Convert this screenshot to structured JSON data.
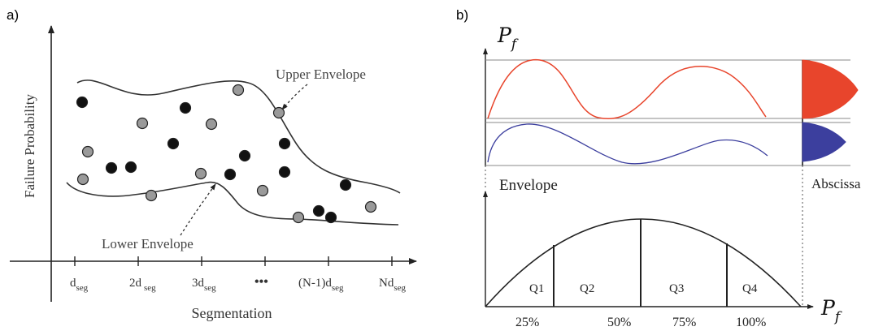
{
  "panel_a": {
    "panel_label": "a)",
    "y_axis_label": "Failure Probability",
    "x_axis_label": "Segmentation",
    "upper_envelope_label": "Upper Envelope",
    "lower_envelope_label": "Lower Envelope",
    "ticks": [
      {
        "main": "d",
        "sub": "seg"
      },
      {
        "main": "2d",
        "sub": "seg"
      },
      {
        "main": "3d",
        "sub": "seg"
      },
      {
        "main": "•••",
        "sub": ""
      },
      {
        "main": "(N-1)d",
        "sub": "seg"
      },
      {
        "main": "Nd",
        "sub": "seg"
      }
    ],
    "colors": {
      "dark_point": "#111111",
      "light_point": "#9a9a9a"
    }
  },
  "panel_b": {
    "panel_label": "b)",
    "y_axis_symbol": "P",
    "y_axis_subscript": "f",
    "x_axis_symbol": "P",
    "x_axis_subscript": "f",
    "envelope_label": "Envelope",
    "abscissa_label": "Abscissa",
    "quartile_labels": [
      "Q1",
      "Q2",
      "Q3",
      "Q4"
    ],
    "percent_labels": [
      "25%",
      "50%",
      "75%",
      "100%"
    ],
    "colors": {
      "upper_curve": "#e8452c",
      "lower_curve": "#3c3f9e"
    }
  }
}
